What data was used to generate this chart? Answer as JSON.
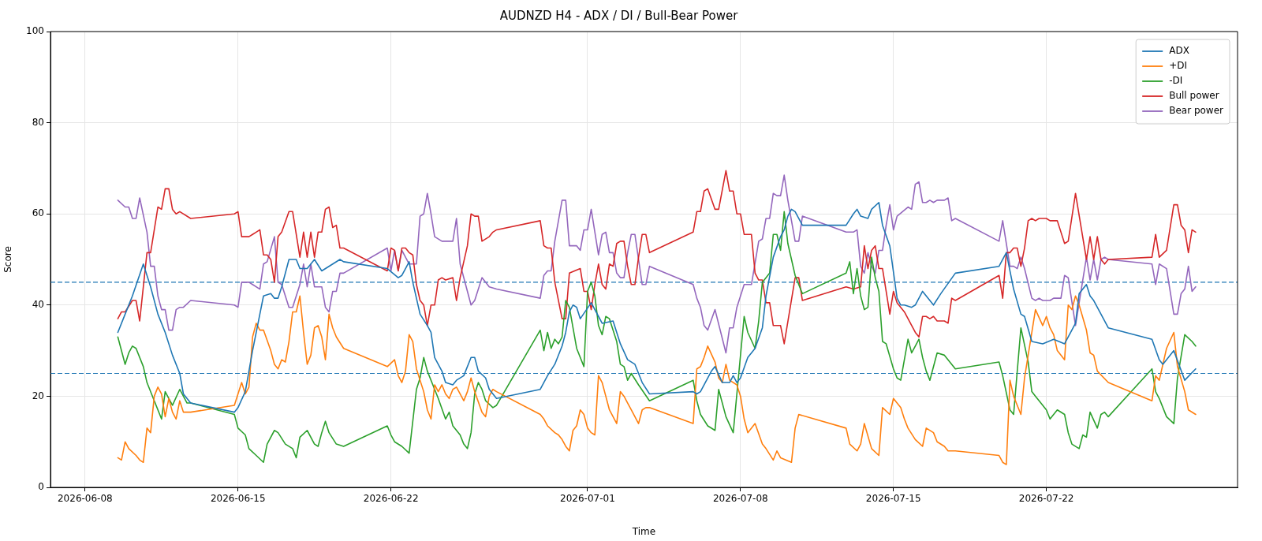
{
  "chart_data": {
    "type": "line",
    "title": "AUDNZD H4 - ADX / DI / Bull-Bear Power",
    "xlabel": "Time",
    "ylabel": "Score",
    "xlim": [
      "2026-06-06T10:00",
      "2026-07-30T18:00"
    ],
    "xticks": [
      "2026-06-08",
      "2026-06-15",
      "2026-06-22",
      "2026-07-01",
      "2026-07-08",
      "2026-07-15",
      "2026-07-22"
    ],
    "ylim": [
      0,
      100
    ],
    "yticks": [
      0,
      20,
      40,
      60,
      80,
      100
    ],
    "grid": true,
    "legend": "top right",
    "line_style": "solid",
    "ref_lines": [
      {
        "axis": "y",
        "value": 45,
        "color": "#1f77b4",
        "line_style": "dashed"
      },
      {
        "axis": "y",
        "value": 25,
        "color": "#1f77b4",
        "line_style": "dashed"
      }
    ],
    "series": [
      {
        "name": "ADX",
        "color": "#1f77b4",
        "x": [
          "2026-06-09T12:00",
          "2026-06-09T20:00",
          "2026-06-10T04:00",
          "2026-06-10T16:00",
          "2026-06-11T00:00",
          "2026-06-11T08:00",
          "2026-06-11T16:00",
          "2026-06-12T00:00",
          "2026-06-12T08:00",
          "2026-06-12T12:00",
          "2026-06-12T20:00",
          "2026-06-14T20:00",
          "2026-06-15T00:00",
          "2026-06-15T08:00",
          "2026-06-15T16:00",
          "2026-06-16T00:00",
          "2026-06-16T04:00",
          "2026-06-16T12:00",
          "2026-06-16T16:00",
          "2026-06-16T20:00",
          "2026-06-17T00:00",
          "2026-06-17T08:00",
          "2026-06-17T16:00",
          "2026-06-17T20:00",
          "2026-06-18T04:00",
          "2026-06-18T12:00",
          "2026-06-18T20:00",
          "2026-06-19T16:00",
          "2026-06-19T20:00",
          "2026-06-21T20:00",
          "2026-06-22T08:00",
          "2026-06-22T12:00",
          "2026-06-22T16:00",
          "2026-06-22T20:00",
          "2026-06-23T00:00",
          "2026-06-23T08:00",
          "2026-06-23T16:00",
          "2026-06-23T20:00",
          "2026-06-24T00:00",
          "2026-06-24T08:00",
          "2026-06-24T12:00",
          "2026-06-24T20:00",
          "2026-06-25T00:00",
          "2026-06-25T08:00",
          "2026-06-25T16:00",
          "2026-06-25T20:00",
          "2026-06-26T00:00",
          "2026-06-26T08:00",
          "2026-06-26T12:00",
          "2026-06-26T20:00",
          "2026-06-28T20:00",
          "2026-06-29T04:00",
          "2026-06-29T12:00",
          "2026-06-29T20:00",
          "2026-06-30T00:00",
          "2026-06-30T04:00",
          "2026-06-30T08:00",
          "2026-06-30T12:00",
          "2026-06-30T16:00",
          "2026-07-01T04:00",
          "2026-07-01T12:00",
          "2026-07-01T16:00",
          "2026-07-02T04:00",
          "2026-07-02T12:00",
          "2026-07-02T20:00",
          "2026-07-03T04:00",
          "2026-07-03T12:00",
          "2026-07-03T20:00",
          "2026-07-05T20:00",
          "2026-07-06T00:00",
          "2026-07-06T04:00",
          "2026-07-06T16:00",
          "2026-07-06T20:00",
          "2026-07-07T04:00",
          "2026-07-07T12:00",
          "2026-07-07T16:00",
          "2026-07-07T20:00",
          "2026-07-08T00:00",
          "2026-07-08T08:00",
          "2026-07-08T16:00",
          "2026-07-09T00:00",
          "2026-07-09T04:00",
          "2026-07-09T12:00",
          "2026-07-09T20:00",
          "2026-07-10T00:00",
          "2026-07-10T04:00",
          "2026-07-10T08:00",
          "2026-07-10T12:00",
          "2026-07-10T20:00",
          "2026-07-12T20:00",
          "2026-07-13T04:00",
          "2026-07-13T08:00",
          "2026-07-13T12:00",
          "2026-07-13T20:00",
          "2026-07-14T00:00",
          "2026-07-14T08:00",
          "2026-07-14T12:00",
          "2026-07-14T20:00",
          "2026-07-15T04:00",
          "2026-07-15T08:00",
          "2026-07-15T12:00",
          "2026-07-15T20:00",
          "2026-07-16T00:00",
          "2026-07-16T08:00",
          "2026-07-16T20:00",
          "2026-07-17T04:00",
          "2026-07-17T20:00",
          "2026-07-19T20:00",
          "2026-07-20T04:00",
          "2026-07-20T12:00",
          "2026-07-20T20:00",
          "2026-07-21T00:00",
          "2026-07-21T08:00",
          "2026-07-21T20:00",
          "2026-07-22T08:00",
          "2026-07-22T20:00",
          "2026-07-23T08:00",
          "2026-07-23T12:00",
          "2026-07-23T20:00",
          "2026-07-24T00:00",
          "2026-07-24T04:00",
          "2026-07-24T20:00",
          "2026-07-26T20:00",
          "2026-07-27T04:00",
          "2026-07-27T08:00",
          "2026-07-27T20:00",
          "2026-07-28T08:00",
          "2026-07-28T20:00"
        ],
        "values": [
          34,
          38,
          42,
          49,
          44,
          38,
          34,
          29,
          25,
          20.5,
          18.5,
          16.5,
          17.5,
          21,
          30,
          38,
          42,
          42.5,
          41.5,
          41.5,
          44,
          50,
          50,
          48,
          48,
          50,
          47.5,
          50,
          49.5,
          48,
          46,
          46.5,
          48,
          49.5,
          45,
          38,
          35.5,
          34,
          28.5,
          25.5,
          23,
          22.5,
          23.5,
          24.5,
          28.5,
          28.5,
          25.5,
          24,
          21.5,
          19.5,
          21.5,
          24.5,
          27,
          31,
          34,
          38.5,
          40,
          39.5,
          37,
          40.5,
          37.5,
          36,
          36.5,
          31.5,
          28,
          27,
          23,
          20.5,
          21,
          20.5,
          21,
          25.5,
          26.5,
          23,
          23,
          24.5,
          23,
          24,
          28.5,
          30.5,
          35,
          42,
          50.5,
          55,
          56.5,
          59.5,
          61,
          60.5,
          57.5,
          57.5,
          60,
          61,
          59.5,
          59,
          61,
          62.5,
          57.5,
          53,
          41.5,
          40,
          40,
          39.5,
          40,
          43,
          40,
          42.5,
          47,
          48.5,
          51.5,
          43.5,
          38,
          37.5,
          32,
          31.5,
          32.5,
          31.5,
          36,
          42.5,
          44.5,
          42,
          41,
          35,
          32.5,
          28,
          27,
          30,
          23.5,
          26
        ]
      },
      {
        "name": "+DI",
        "color": "#ff7f0e",
        "x": [
          "2026-06-09T12:00",
          "2026-06-09T16:00",
          "2026-06-09T20:00",
          "2026-06-10T00:00",
          "2026-06-10T08:00",
          "2026-06-10T12:00",
          "2026-06-10T16:00",
          "2026-06-10T20:00",
          "2026-06-11T00:00",
          "2026-06-11T04:00",
          "2026-06-11T08:00",
          "2026-06-11T12:00",
          "2026-06-11T16:00",
          "2026-06-11T20:00",
          "2026-06-12T00:00",
          "2026-06-12T04:00",
          "2026-06-12T08:00",
          "2026-06-12T12:00",
          "2026-06-12T20:00",
          "2026-06-14T20:00",
          "2026-06-15T04:00",
          "2026-06-15T08:00",
          "2026-06-15T12:00",
          "2026-06-15T16:00",
          "2026-06-15T20:00",
          "2026-06-16T00:00",
          "2026-06-16T04:00",
          "2026-06-16T12:00",
          "2026-06-16T16:00",
          "2026-06-16T20:00",
          "2026-06-17T00:00",
          "2026-06-17T04:00",
          "2026-06-17T08:00",
          "2026-06-17T12:00",
          "2026-06-17T16:00",
          "2026-06-17T20:00",
          "2026-06-18T00:00",
          "2026-06-18T04:00",
          "2026-06-18T08:00",
          "2026-06-18T12:00",
          "2026-06-18T16:00",
          "2026-06-18T20:00",
          "2026-06-19T00:00",
          "2026-06-19T04:00",
          "2026-06-19T08:00",
          "2026-06-19T12:00",
          "2026-06-19T20:00",
          "2026-06-21T20:00",
          "2026-06-22T04:00",
          "2026-06-22T08:00",
          "2026-06-22T12:00",
          "2026-06-22T16:00",
          "2026-06-22T20:00",
          "2026-06-23T00:00",
          "2026-06-23T04:00",
          "2026-06-23T12:00",
          "2026-06-23T16:00",
          "2026-06-23T20:00",
          "2026-06-24T00:00",
          "2026-06-24T04:00",
          "2026-06-24T08:00",
          "2026-06-24T12:00",
          "2026-06-24T16:00",
          "2026-06-24T20:00",
          "2026-06-25T00:00",
          "2026-06-25T08:00",
          "2026-06-25T12:00",
          "2026-06-25T16:00",
          "2026-06-25T20:00",
          "2026-06-26T04:00",
          "2026-06-26T08:00",
          "2026-06-26T12:00",
          "2026-06-26T16:00",
          "2026-06-26T20:00",
          "2026-06-28T20:00",
          "2026-06-29T00:00",
          "2026-06-29T04:00",
          "2026-06-29T12:00",
          "2026-06-29T16:00",
          "2026-06-29T20:00",
          "2026-06-30T00:00",
          "2026-06-30T04:00",
          "2026-06-30T08:00",
          "2026-06-30T12:00",
          "2026-06-30T16:00",
          "2026-06-30T20:00",
          "2026-07-01T00:00",
          "2026-07-01T04:00",
          "2026-07-01T08:00",
          "2026-07-01T12:00",
          "2026-07-01T16:00",
          "2026-07-01T20:00",
          "2026-07-02T00:00",
          "2026-07-02T08:00",
          "2026-07-02T12:00",
          "2026-07-02T16:00",
          "2026-07-02T20:00",
          "2026-07-03T00:00",
          "2026-07-03T04:00",
          "2026-07-03T08:00",
          "2026-07-03T12:00",
          "2026-07-03T16:00",
          "2026-07-03T20:00",
          "2026-07-05T20:00",
          "2026-07-06T00:00",
          "2026-07-06T04:00",
          "2026-07-06T08:00",
          "2026-07-06T12:00",
          "2026-07-06T20:00",
          "2026-07-07T00:00",
          "2026-07-07T04:00",
          "2026-07-07T08:00",
          "2026-07-07T12:00",
          "2026-07-07T20:00",
          "2026-07-08T00:00",
          "2026-07-08T04:00",
          "2026-07-08T08:00",
          "2026-07-08T16:00",
          "2026-07-09T00:00",
          "2026-07-09T04:00",
          "2026-07-09T12:00",
          "2026-07-09T16:00",
          "2026-07-09T20:00",
          "2026-07-10T08:00",
          "2026-07-10T12:00",
          "2026-07-10T16:00",
          "2026-07-12T20:00",
          "2026-07-13T00:00",
          "2026-07-13T08:00",
          "2026-07-13T12:00",
          "2026-07-13T16:00",
          "2026-07-14T00:00",
          "2026-07-14T08:00",
          "2026-07-14T12:00",
          "2026-07-14T20:00",
          "2026-07-15T00:00",
          "2026-07-15T08:00",
          "2026-07-15T12:00",
          "2026-07-15T16:00",
          "2026-07-16T00:00",
          "2026-07-16T08:00",
          "2026-07-16T12:00",
          "2026-07-16T20:00",
          "2026-07-17T00:00",
          "2026-07-17T08:00",
          "2026-07-17T12:00",
          "2026-07-17T20:00",
          "2026-07-19T20:00",
          "2026-07-20T00:00",
          "2026-07-20T04:00",
          "2026-07-20T08:00",
          "2026-07-20T12:00",
          "2026-07-20T20:00",
          "2026-07-21T00:00",
          "2026-07-21T12:00",
          "2026-07-21T20:00",
          "2026-07-22T00:00",
          "2026-07-22T04:00",
          "2026-07-22T08:00",
          "2026-07-22T12:00",
          "2026-07-22T20:00",
          "2026-07-23T00:00",
          "2026-07-23T04:00",
          "2026-07-23T08:00",
          "2026-07-23T12:00",
          "2026-07-23T20:00",
          "2026-07-24T00:00",
          "2026-07-24T04:00",
          "2026-07-24T08:00",
          "2026-07-24T20:00",
          "2026-07-26T20:00",
          "2026-07-27T00:00",
          "2026-07-27T04:00",
          "2026-07-27T12:00",
          "2026-07-27T20:00",
          "2026-07-28T00:00",
          "2026-07-28T08:00",
          "2026-07-28T12:00",
          "2026-07-28T20:00"
        ],
        "values": [
          6.5,
          6,
          10,
          8.5,
          7,
          6,
          5.5,
          13,
          12,
          20,
          22,
          20.5,
          15.5,
          19.5,
          16.5,
          15,
          19,
          16.5,
          16.5,
          18,
          23,
          20.5,
          22,
          33,
          36,
          34.5,
          34.5,
          30,
          27,
          26,
          28,
          27.5,
          32,
          38.5,
          38.5,
          42,
          34,
          27,
          29,
          35,
          35.5,
          33,
          28,
          38,
          35,
          33,
          30.5,
          26.5,
          28,
          24.5,
          23,
          25.5,
          33.5,
          32,
          26,
          21,
          17,
          15,
          22.5,
          21,
          22.5,
          20.5,
          19.5,
          21.5,
          22,
          19,
          21,
          24,
          21,
          16.5,
          15.5,
          20,
          21.5,
          21,
          16,
          15,
          13.5,
          12,
          11.5,
          10.5,
          9,
          8,
          12.5,
          13.5,
          17,
          16,
          13,
          12,
          11.5,
          24.5,
          23,
          20,
          17,
          14,
          21,
          20,
          18.5,
          17,
          15.5,
          14,
          17,
          17.5,
          17.5,
          14,
          26,
          26.5,
          28.5,
          31,
          27.5,
          24,
          23,
          27,
          23.5,
          22.5,
          20,
          15,
          12,
          14,
          9.5,
          8.5,
          6,
          8,
          6.5,
          5.5,
          13,
          16,
          13,
          9.5,
          8,
          9.5,
          14,
          8.5,
          7,
          17.5,
          16,
          19.5,
          17.5,
          15,
          13,
          10.5,
          9,
          13,
          12,
          10,
          9,
          8,
          8,
          7,
          5.5,
          5,
          23.5,
          20,
          16,
          24,
          39,
          35.5,
          37.5,
          35,
          33.5,
          30,
          28,
          40,
          39,
          42,
          40,
          34.5,
          29.5,
          29,
          25.5,
          23,
          19,
          24.5,
          23.5,
          30.5,
          34,
          26.5,
          21,
          17,
          16
        ]
      },
      {
        "name": "-DI",
        "color": "#2ca02c",
        "x": [
          "2026-06-09T12:00",
          "2026-06-09T20:00",
          "2026-06-10T00:00",
          "2026-06-10T04:00",
          "2026-06-10T08:00",
          "2026-06-10T16:00",
          "2026-06-10T20:00",
          "2026-06-11T04:00",
          "2026-06-11T12:00",
          "2026-06-11T16:00",
          "2026-06-12T00:00",
          "2026-06-12T08:00",
          "2026-06-12T16:00",
          "2026-06-12T20:00",
          "2026-06-14T20:00",
          "2026-06-15T00:00",
          "2026-06-15T08:00",
          "2026-06-15T12:00",
          "2026-06-15T20:00",
          "2026-06-16T04:00",
          "2026-06-16T08:00",
          "2026-06-16T16:00",
          "2026-06-16T20:00",
          "2026-06-17T04:00",
          "2026-06-17T12:00",
          "2026-06-17T16:00",
          "2026-06-17T20:00",
          "2026-06-18T04:00",
          "2026-06-18T12:00",
          "2026-06-18T16:00",
          "2026-06-18T20:00",
          "2026-06-19T00:00",
          "2026-06-19T04:00",
          "2026-06-19T12:00",
          "2026-06-19T20:00",
          "2026-06-21T20:00",
          "2026-06-22T00:00",
          "2026-06-22T04:00",
          "2026-06-22T12:00",
          "2026-06-22T20:00",
          "2026-06-23T04:00",
          "2026-06-23T08:00",
          "2026-06-23T12:00",
          "2026-06-23T16:00",
          "2026-06-24T00:00",
          "2026-06-24T04:00",
          "2026-06-24T12:00",
          "2026-06-24T16:00",
          "2026-06-24T20:00",
          "2026-06-25T04:00",
          "2026-06-25T08:00",
          "2026-06-25T12:00",
          "2026-06-25T16:00",
          "2026-06-25T20:00",
          "2026-06-26T00:00",
          "2026-06-26T04:00",
          "2026-06-26T08:00",
          "2026-06-26T16:00",
          "2026-06-26T20:00",
          "2026-06-28T20:00",
          "2026-06-29T00:00",
          "2026-06-29T04:00",
          "2026-06-29T08:00",
          "2026-06-29T12:00",
          "2026-06-29T16:00",
          "2026-06-29T20:00",
          "2026-06-30T00:00",
          "2026-06-30T04:00",
          "2026-06-30T12:00",
          "2026-06-30T20:00",
          "2026-07-01T00:00",
          "2026-07-01T04:00",
          "2026-07-01T08:00",
          "2026-07-01T12:00",
          "2026-07-01T16:00",
          "2026-07-01T20:00",
          "2026-07-02T00:00",
          "2026-07-02T08:00",
          "2026-07-02T12:00",
          "2026-07-02T16:00",
          "2026-07-02T20:00",
          "2026-07-03T00:00",
          "2026-07-03T08:00",
          "2026-07-03T20:00",
          "2026-07-05T20:00",
          "2026-07-06T00:00",
          "2026-07-06T04:00",
          "2026-07-06T12:00",
          "2026-07-06T20:00",
          "2026-07-07T00:00",
          "2026-07-07T04:00",
          "2026-07-07T08:00",
          "2026-07-07T16:00",
          "2026-07-07T20:00",
          "2026-07-08T04:00",
          "2026-07-08T08:00",
          "2026-07-08T16:00",
          "2026-07-08T20:00",
          "2026-07-09T00:00",
          "2026-07-09T08:00",
          "2026-07-09T12:00",
          "2026-07-09T16:00",
          "2026-07-09T20:00",
          "2026-07-10T00:00",
          "2026-07-10T04:00",
          "2026-07-10T12:00",
          "2026-07-10T20:00",
          "2026-07-12T20:00",
          "2026-07-13T00:00",
          "2026-07-13T04:00",
          "2026-07-13T08:00",
          "2026-07-13T12:00",
          "2026-07-13T16:00",
          "2026-07-13T20:00",
          "2026-07-14T00:00",
          "2026-07-14T04:00",
          "2026-07-14T08:00",
          "2026-07-14T12:00",
          "2026-07-14T16:00",
          "2026-07-15T00:00",
          "2026-07-15T04:00",
          "2026-07-15T08:00",
          "2026-07-15T16:00",
          "2026-07-15T20:00",
          "2026-07-16T00:00",
          "2026-07-16T04:00",
          "2026-07-16T08:00",
          "2026-07-16T12:00",
          "2026-07-16T16:00",
          "2026-07-17T00:00",
          "2026-07-17T08:00",
          "2026-07-17T20:00",
          "2026-07-19T20:00",
          "2026-07-20T00:00",
          "2026-07-20T08:00",
          "2026-07-20T12:00",
          "2026-07-20T20:00",
          "2026-07-21T04:00",
          "2026-07-21T08:00",
          "2026-07-21T12:00",
          "2026-07-22T00:00",
          "2026-07-22T04:00",
          "2026-07-22T12:00",
          "2026-07-22T20:00",
          "2026-07-23T00:00",
          "2026-07-23T04:00",
          "2026-07-23T12:00",
          "2026-07-23T16:00",
          "2026-07-23T20:00",
          "2026-07-24T00:00",
          "2026-07-24T08:00",
          "2026-07-24T12:00",
          "2026-07-24T16:00",
          "2026-07-24T20:00",
          "2026-07-26T20:00",
          "2026-07-27T00:00",
          "2026-07-27T04:00",
          "2026-07-27T12:00",
          "2026-07-27T20:00",
          "2026-07-28T00:00",
          "2026-07-28T08:00",
          "2026-07-28T16:00",
          "2026-07-28T20:00"
        ],
        "values": [
          33,
          27,
          29.5,
          31,
          30.5,
          26.5,
          23,
          19,
          15,
          21,
          18,
          21.5,
          18.5,
          18.5,
          16,
          13,
          11.5,
          8.5,
          7,
          5.5,
          9.5,
          12.5,
          12,
          9.5,
          8.5,
          6.5,
          11,
          12.5,
          9.5,
          9,
          12,
          14.5,
          12,
          9.5,
          9,
          13.5,
          11.5,
          10,
          9,
          7.5,
          21.5,
          24,
          28.5,
          25.5,
          21.5,
          19.5,
          15,
          16.5,
          13.5,
          11.5,
          9.5,
          8.5,
          12,
          20.5,
          23,
          21.5,
          19,
          17.5,
          18,
          34.5,
          30,
          34,
          30.5,
          32.5,
          31.5,
          33,
          41,
          39.5,
          30.5,
          26.5,
          43,
          45,
          42,
          35.5,
          33.5,
          37.5,
          37,
          32,
          27,
          26.5,
          23.5,
          25,
          22.5,
          19,
          23.5,
          19,
          16,
          13.5,
          12.5,
          21.5,
          18.5,
          15.5,
          12,
          20.5,
          37.5,
          34,
          30.5,
          36.5,
          45,
          47,
          55.5,
          55.5,
          52,
          60.5,
          53.5,
          46.5,
          42.5,
          47,
          49.5,
          42.5,
          48,
          42,
          39,
          39.5,
          50.5,
          46,
          43,
          32,
          31.5,
          26,
          24,
          23.5,
          32.5,
          29.5,
          31,
          32.5,
          28.5,
          25.5,
          23.5,
          29.5,
          29,
          26,
          27.5,
          24.5,
          17,
          16,
          35,
          27.5,
          21,
          20,
          17,
          15,
          17,
          16,
          12,
          9.5,
          8.5,
          11.5,
          11,
          16.5,
          13,
          16,
          16.5,
          15.5,
          26,
          21,
          19.5,
          15.5,
          14,
          24,
          33.5,
          32,
          31
        ]
      },
      {
        "name": "Bull power",
        "color": "#d62728",
        "x": [
          "2026-06-09T12:00",
          "2026-06-09T16:00",
          "2026-06-09T20:00",
          "2026-06-10T04:00",
          "2026-06-10T08:00",
          "2026-06-10T12:00",
          "2026-06-10T16:00",
          "2026-06-10T20:00",
          "2026-06-11T00:00",
          "2026-06-11T08:00",
          "2026-06-11T12:00",
          "2026-06-11T16:00",
          "2026-06-11T20:00",
          "2026-06-12T00:00",
          "2026-06-12T04:00",
          "2026-06-12T08:00",
          "2026-06-12T20:00",
          "2026-06-14T20:00",
          "2026-06-15T00:00",
          "2026-06-15T04:00",
          "2026-06-15T12:00",
          "2026-06-15T16:00",
          "2026-06-15T20:00",
          "2026-06-16T00:00",
          "2026-06-16T04:00",
          "2026-06-16T08:00",
          "2026-06-16T12:00",
          "2026-06-16T16:00",
          "2026-06-16T20:00",
          "2026-06-17T00:00",
          "2026-06-17T08:00",
          "2026-06-17T12:00",
          "2026-06-17T20:00",
          "2026-06-18T00:00",
          "2026-06-18T04:00",
          "2026-06-18T08:00",
          "2026-06-18T12:00",
          "2026-06-18T16:00",
          "2026-06-18T20:00",
          "2026-06-19T00:00",
          "2026-06-19T04:00",
          "2026-06-19T08:00",
          "2026-06-19T12:00",
          "2026-06-19T16:00",
          "2026-06-19T20:00",
          "2026-06-21T20:00",
          "2026-06-22T00:00",
          "2026-06-22T04:00",
          "2026-06-22T08:00",
          "2026-06-22T12:00",
          "2026-06-22T16:00",
          "2026-06-22T20:00",
          "2026-06-23T00:00",
          "2026-06-23T04:00",
          "2026-06-23T08:00",
          "2026-06-23T12:00",
          "2026-06-23T16:00",
          "2026-06-23T20:00",
          "2026-06-24T00:00",
          "2026-06-24T04:00",
          "2026-06-24T08:00",
          "2026-06-24T12:00",
          "2026-06-24T20:00",
          "2026-06-25T00:00",
          "2026-06-25T04:00",
          "2026-06-25T12:00",
          "2026-06-25T16:00",
          "2026-06-25T20:00",
          "2026-06-26T00:00",
          "2026-06-26T04:00",
          "2026-06-26T12:00",
          "2026-06-26T16:00",
          "2026-06-26T20:00",
          "2026-06-28T20:00",
          "2026-06-29T00:00",
          "2026-06-29T04:00",
          "2026-06-29T08:00",
          "2026-06-29T12:00",
          "2026-06-29T20:00",
          "2026-06-30T00:00",
          "2026-06-30T04:00",
          "2026-06-30T16:00",
          "2026-06-30T20:00",
          "2026-07-01T00:00",
          "2026-07-01T04:00",
          "2026-07-01T08:00",
          "2026-07-01T12:00",
          "2026-07-01T16:00",
          "2026-07-01T20:00",
          "2026-07-02T00:00",
          "2026-07-02T04:00",
          "2026-07-02T08:00",
          "2026-07-02T12:00",
          "2026-07-02T16:00",
          "2026-07-02T20:00",
          "2026-07-03T00:00",
          "2026-07-03T04:00",
          "2026-07-03T08:00",
          "2026-07-03T12:00",
          "2026-07-03T16:00",
          "2026-07-03T20:00",
          "2026-07-05T20:00",
          "2026-07-06T00:00",
          "2026-07-06T04:00",
          "2026-07-06T08:00",
          "2026-07-06T12:00",
          "2026-07-06T20:00",
          "2026-07-07T00:00",
          "2026-07-07T08:00",
          "2026-07-07T12:00",
          "2026-07-07T16:00",
          "2026-07-07T20:00",
          "2026-07-08T00:00",
          "2026-07-08T04:00",
          "2026-07-08T12:00",
          "2026-07-08T16:00",
          "2026-07-08T20:00",
          "2026-07-09T00:00",
          "2026-07-09T04:00",
          "2026-07-09T08:00",
          "2026-07-09T12:00",
          "2026-07-09T20:00",
          "2026-07-10T00:00",
          "2026-07-10T12:00",
          "2026-07-10T16:00",
          "2026-07-10T20:00",
          "2026-07-12T20:00",
          "2026-07-13T04:00",
          "2026-07-13T12:00",
          "2026-07-13T16:00",
          "2026-07-13T20:00",
          "2026-07-14T00:00",
          "2026-07-14T04:00",
          "2026-07-14T08:00",
          "2026-07-14T12:00",
          "2026-07-14T16:00",
          "2026-07-14T20:00",
          "2026-07-15T00:00",
          "2026-07-15T04:00",
          "2026-07-15T12:00",
          "2026-07-16T00:00",
          "2026-07-16T04:00",
          "2026-07-16T08:00",
          "2026-07-16T12:00",
          "2026-07-16T16:00",
          "2026-07-16T20:00",
          "2026-07-17T00:00",
          "2026-07-17T08:00",
          "2026-07-17T12:00",
          "2026-07-17T16:00",
          "2026-07-17T20:00",
          "2026-07-19T20:00",
          "2026-07-20T00:00",
          "2026-07-20T04:00",
          "2026-07-20T08:00",
          "2026-07-20T12:00",
          "2026-07-20T16:00",
          "2026-07-20T20:00",
          "2026-07-21T00:00",
          "2026-07-21T04:00",
          "2026-07-21T08:00",
          "2026-07-21T12:00",
          "2026-07-21T16:00",
          "2026-07-21T20:00",
          "2026-07-22T00:00",
          "2026-07-22T04:00",
          "2026-07-22T08:00",
          "2026-07-22T12:00",
          "2026-07-22T20:00",
          "2026-07-23T00:00",
          "2026-07-23T08:00",
          "2026-07-23T20:00",
          "2026-07-24T00:00",
          "2026-07-24T04:00",
          "2026-07-24T08:00",
          "2026-07-24T12:00",
          "2026-07-24T16:00",
          "2026-07-24T20:00",
          "2026-07-26T20:00",
          "2026-07-27T00:00",
          "2026-07-27T04:00",
          "2026-07-27T12:00",
          "2026-07-27T20:00",
          "2026-07-28T00:00",
          "2026-07-28T04:00",
          "2026-07-28T08:00",
          "2026-07-28T12:00",
          "2026-07-28T16:00",
          "2026-07-28T20:00"
        ],
        "values": [
          37,
          38.5,
          38.5,
          41,
          41,
          36.5,
          44,
          51.5,
          51.5,
          61.5,
          61,
          65.5,
          65.5,
          61,
          60,
          60.5,
          59,
          60,
          60.5,
          55,
          55,
          55.5,
          56,
          56.5,
          51,
          51,
          50,
          45,
          55,
          56,
          60.5,
          60.5,
          50.5,
          56,
          50.5,
          56,
          50.5,
          56,
          56,
          61,
          61.5,
          57,
          57.5,
          52.5,
          52.5,
          47.5,
          52.5,
          52,
          47.5,
          52.5,
          52.5,
          51.5,
          51,
          44.5,
          41,
          40,
          35.5,
          40,
          40,
          45.5,
          46,
          45.5,
          46,
          41,
          46,
          53,
          60,
          59.5,
          59.5,
          54,
          55,
          56,
          56.5,
          58.5,
          53,
          52.5,
          52.5,
          45,
          37,
          37,
          47,
          48,
          43,
          43,
          39,
          44.5,
          49,
          44.5,
          43.5,
          49,
          48.5,
          53.5,
          54,
          54,
          48.5,
          44.5,
          44.5,
          50.5,
          55.5,
          55.5,
          51.5,
          56,
          60.5,
          60.5,
          65,
          65.5,
          61,
          61,
          69.5,
          65,
          65,
          60,
          60,
          55.5,
          55.5,
          47,
          45.5,
          45.5,
          40.5,
          40.5,
          35.5,
          35.5,
          31.5,
          46,
          46,
          41,
          44,
          43.5,
          44,
          53,
          48,
          52,
          53,
          48,
          48,
          43,
          38,
          43,
          40.5,
          38.5,
          34,
          33,
          37.5,
          37.5,
          37,
          37.5,
          36.5,
          36.5,
          36,
          41.5,
          41,
          46.5,
          41.5,
          51.5,
          51.5,
          52.5,
          52.5,
          48.5,
          52.5,
          58.5,
          59,
          58.5,
          59,
          59,
          59,
          58.5,
          58.5,
          58.5,
          53.5,
          54,
          64.5,
          50,
          55,
          50,
          55,
          50,
          49,
          50,
          50.5,
          55.5,
          50.5,
          52,
          62,
          62,
          57.5,
          56.5,
          51.5,
          56.5,
          56
        ]
      },
      {
        "name": "Bear power",
        "color": "#9467bd",
        "x": [
          "2026-06-09T12:00",
          "2026-06-09T20:00",
          "2026-06-10T00:00",
          "2026-06-10T04:00",
          "2026-06-10T08:00",
          "2026-06-10T12:00",
          "2026-06-10T20:00",
          "2026-06-11T00:00",
          "2026-06-11T04:00",
          "2026-06-11T08:00",
          "2026-06-11T12:00",
          "2026-06-11T16:00",
          "2026-06-11T20:00",
          "2026-06-12T00:00",
          "2026-06-12T04:00",
          "2026-06-12T08:00",
          "2026-06-12T12:00",
          "2026-06-12T20:00",
          "2026-06-14T20:00",
          "2026-06-15T00:00",
          "2026-06-15T04:00",
          "2026-06-15T12:00",
          "2026-06-15T16:00",
          "2026-06-16T00:00",
          "2026-06-16T04:00",
          "2026-06-16T08:00",
          "2026-06-16T16:00",
          "2026-06-16T20:00",
          "2026-06-17T00:00",
          "2026-06-17T08:00",
          "2026-06-17T12:00",
          "2026-06-17T20:00",
          "2026-06-18T00:00",
          "2026-06-18T04:00",
          "2026-06-18T08:00",
          "2026-06-18T12:00",
          "2026-06-18T20:00",
          "2026-06-19T00:00",
          "2026-06-19T04:00",
          "2026-06-19T08:00",
          "2026-06-19T12:00",
          "2026-06-19T16:00",
          "2026-06-19T20:00",
          "2026-06-21T20:00",
          "2026-06-22T00:00",
          "2026-06-22T04:00",
          "2026-06-22T08:00",
          "2026-06-22T12:00",
          "2026-06-22T20:00",
          "2026-06-23T04:00",
          "2026-06-23T08:00",
          "2026-06-23T12:00",
          "2026-06-23T16:00",
          "2026-06-23T20:00",
          "2026-06-24T00:00",
          "2026-06-24T08:00",
          "2026-06-24T20:00",
          "2026-06-25T00:00",
          "2026-06-25T04:00",
          "2026-06-25T16:00",
          "2026-06-25T20:00",
          "2026-06-26T04:00",
          "2026-06-26T12:00",
          "2026-06-26T20:00",
          "2026-06-28T20:00",
          "2026-06-29T00:00",
          "2026-06-29T04:00",
          "2026-06-29T08:00",
          "2026-06-29T12:00",
          "2026-06-29T20:00",
          "2026-06-30T00:00",
          "2026-06-30T04:00",
          "2026-06-30T12:00",
          "2026-06-30T16:00",
          "2026-06-30T20:00",
          "2026-07-01T00:00",
          "2026-07-01T04:00",
          "2026-07-01T08:00",
          "2026-07-01T12:00",
          "2026-07-01T16:00",
          "2026-07-01T20:00",
          "2026-07-02T00:00",
          "2026-07-02T04:00",
          "2026-07-02T08:00",
          "2026-07-02T12:00",
          "2026-07-02T16:00",
          "2026-07-02T20:00",
          "2026-07-03T00:00",
          "2026-07-03T04:00",
          "2026-07-03T08:00",
          "2026-07-03T12:00",
          "2026-07-03T16:00",
          "2026-07-03T20:00",
          "2026-07-05T20:00",
          "2026-07-06T00:00",
          "2026-07-06T04:00",
          "2026-07-06T08:00",
          "2026-07-06T12:00",
          "2026-07-06T20:00",
          "2026-07-07T08:00",
          "2026-07-07T12:00",
          "2026-07-07T16:00",
          "2026-07-07T20:00",
          "2026-07-08T04:00",
          "2026-07-08T12:00",
          "2026-07-08T20:00",
          "2026-07-09T00:00",
          "2026-07-09T04:00",
          "2026-07-09T08:00",
          "2026-07-09T12:00",
          "2026-07-09T16:00",
          "2026-07-09T20:00",
          "2026-07-10T00:00",
          "2026-07-10T04:00",
          "2026-07-10T12:00",
          "2026-07-10T16:00",
          "2026-07-10T20:00",
          "2026-07-12T20:00",
          "2026-07-13T04:00",
          "2026-07-13T08:00",
          "2026-07-13T12:00",
          "2026-07-13T16:00",
          "2026-07-13T20:00",
          "2026-07-14T00:00",
          "2026-07-14T04:00",
          "2026-07-14T08:00",
          "2026-07-14T12:00",
          "2026-07-14T16:00",
          "2026-07-14T20:00",
          "2026-07-15T00:00",
          "2026-07-15T04:00",
          "2026-07-15T16:00",
          "2026-07-15T20:00",
          "2026-07-16T00:00",
          "2026-07-16T04:00",
          "2026-07-16T08:00",
          "2026-07-16T12:00",
          "2026-07-16T16:00",
          "2026-07-16T20:00",
          "2026-07-17T00:00",
          "2026-07-17T08:00",
          "2026-07-17T12:00",
          "2026-07-17T16:00",
          "2026-07-17T20:00",
          "2026-07-19T20:00",
          "2026-07-20T00:00",
          "2026-07-20T08:00",
          "2026-07-20T12:00",
          "2026-07-20T16:00",
          "2026-07-20T20:00",
          "2026-07-21T00:00",
          "2026-07-21T08:00",
          "2026-07-21T12:00",
          "2026-07-21T16:00",
          "2026-07-21T20:00",
          "2026-07-22T04:00",
          "2026-07-22T08:00",
          "2026-07-22T16:00",
          "2026-07-22T20:00",
          "2026-07-23T00:00",
          "2026-07-23T08:00",
          "2026-07-23T20:00",
          "2026-07-24T00:00",
          "2026-07-24T04:00",
          "2026-07-24T08:00",
          "2026-07-24T12:00",
          "2026-07-24T16:00",
          "2026-07-24T20:00",
          "2026-07-26T20:00",
          "2026-07-27T00:00",
          "2026-07-27T04:00",
          "2026-07-27T12:00",
          "2026-07-27T20:00",
          "2026-07-28T00:00",
          "2026-07-28T04:00",
          "2026-07-28T08:00",
          "2026-07-28T12:00",
          "2026-07-28T16:00",
          "2026-07-28T20:00"
        ],
        "values": [
          63,
          61.5,
          61.5,
          59,
          59,
          63.5,
          56,
          48.5,
          48.5,
          42,
          39,
          39,
          34.5,
          34.5,
          39,
          39.5,
          39.5,
          41,
          40,
          39.5,
          45,
          45,
          44.5,
          43.5,
          49,
          49.5,
          55,
          45,
          44.5,
          39.5,
          39.5,
          44.5,
          49,
          44,
          49,
          44,
          44,
          39.5,
          38.5,
          43,
          43,
          47,
          47,
          52.5,
          47.5,
          52,
          47.5,
          52,
          49,
          49,
          59.5,
          60,
          64.5,
          60,
          55,
          54,
          54,
          59,
          49,
          40,
          41,
          46,
          44,
          43.5,
          41.5,
          46.5,
          47.5,
          47.5,
          54,
          63,
          63,
          53,
          53,
          52,
          56.5,
          56.5,
          61,
          56,
          51,
          55.5,
          56,
          51.5,
          51.5,
          47,
          46,
          46,
          51.5,
          55.5,
          55.5,
          50,
          44.5,
          44.5,
          48.5,
          44.5,
          41.5,
          39.5,
          35.5,
          34.5,
          39,
          29.5,
          35,
          35,
          39.5,
          44.5,
          44.5,
          54,
          54.5,
          59,
          59,
          64.5,
          64,
          64,
          68.5,
          63,
          54,
          54,
          59.5,
          56,
          56,
          56.5,
          48.5,
          47,
          51.5,
          48.5,
          47,
          52,
          52,
          57.5,
          62,
          56.5,
          59.5,
          61.5,
          61,
          66.5,
          67,
          62.5,
          62.5,
          63,
          62.5,
          63,
          63,
          63.5,
          58.5,
          59,
          54,
          58.5,
          48.5,
          48.5,
          48,
          50.5,
          48,
          41.5,
          41,
          41.5,
          41,
          41,
          41.5,
          41.5,
          46.5,
          46,
          35.5,
          50.5,
          45.5,
          50,
          45.5,
          50,
          50.5,
          50,
          49,
          44.5,
          49,
          48,
          38,
          38,
          42.5,
          43.5,
          48.5,
          43,
          44
        ]
      }
    ]
  }
}
